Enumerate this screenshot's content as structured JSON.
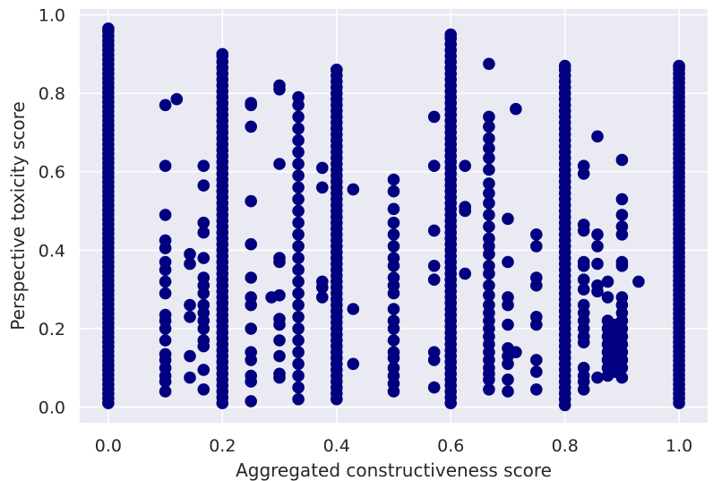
{
  "chart_data": {
    "type": "scatter",
    "title": "",
    "xlabel": "Aggregated constructiveness score",
    "ylabel": "Perspective toxicity score",
    "xlim": [
      -0.05,
      1.05
    ],
    "ylim": [
      -0.04,
      1.015
    ],
    "xticks": [
      "0.0",
      "0.2",
      "0.4",
      "0.6",
      "0.8",
      "1.0"
    ],
    "yticks": [
      "0.0",
      "0.2",
      "0.4",
      "0.6",
      "0.8",
      "1.0"
    ],
    "grid": true,
    "background": "#EAEAF2",
    "marker_color": "#000080",
    "series": [
      {
        "dense_columns": [
          {
            "x": 0.0,
            "y_range": [
              0.01,
              0.965
            ],
            "step": 0.012
          },
          {
            "x": 0.2,
            "y_range": [
              0.01,
              0.9
            ],
            "step": 0.015
          },
          {
            "x": 0.333,
            "y_range": [
              0.02,
              0.79
            ],
            "step": 0.03
          },
          {
            "x": 0.4,
            "y_range": [
              0.02,
              0.86
            ],
            "step": 0.015
          },
          {
            "x": 0.6,
            "y_range": [
              0.01,
              0.95
            ],
            "step": 0.015
          },
          {
            "x": 0.8,
            "y_range": [
              0.005,
              0.87
            ],
            "step": 0.015
          },
          {
            "x": 1.0,
            "y_range": [
              0.01,
              0.87
            ],
            "step": 0.012
          }
        ],
        "points": [
          [
            0.1,
            0.77
          ],
          [
            0.12,
            0.785
          ],
          [
            0.1,
            0.615
          ],
          [
            0.1,
            0.49
          ],
          [
            0.1,
            0.425
          ],
          [
            0.1,
            0.405
          ],
          [
            0.1,
            0.37
          ],
          [
            0.1,
            0.35
          ],
          [
            0.1,
            0.32
          ],
          [
            0.1,
            0.29
          ],
          [
            0.1,
            0.235
          ],
          [
            0.1,
            0.22
          ],
          [
            0.1,
            0.2
          ],
          [
            0.1,
            0.17
          ],
          [
            0.1,
            0.135
          ],
          [
            0.1,
            0.12
          ],
          [
            0.1,
            0.1
          ],
          [
            0.1,
            0.08
          ],
          [
            0.1,
            0.065
          ],
          [
            0.1,
            0.04
          ],
          [
            0.143,
            0.39
          ],
          [
            0.143,
            0.365
          ],
          [
            0.143,
            0.26
          ],
          [
            0.143,
            0.23
          ],
          [
            0.143,
            0.13
          ],
          [
            0.143,
            0.075
          ],
          [
            0.167,
            0.615
          ],
          [
            0.167,
            0.565
          ],
          [
            0.167,
            0.47
          ],
          [
            0.167,
            0.445
          ],
          [
            0.167,
            0.38
          ],
          [
            0.167,
            0.33
          ],
          [
            0.167,
            0.31
          ],
          [
            0.167,
            0.29
          ],
          [
            0.167,
            0.26
          ],
          [
            0.167,
            0.24
          ],
          [
            0.167,
            0.22
          ],
          [
            0.167,
            0.2
          ],
          [
            0.167,
            0.17
          ],
          [
            0.167,
            0.155
          ],
          [
            0.167,
            0.095
          ],
          [
            0.167,
            0.045
          ],
          [
            0.25,
            0.775
          ],
          [
            0.25,
            0.77
          ],
          [
            0.25,
            0.715
          ],
          [
            0.25,
            0.525
          ],
          [
            0.25,
            0.415
          ],
          [
            0.25,
            0.33
          ],
          [
            0.25,
            0.28
          ],
          [
            0.25,
            0.26
          ],
          [
            0.25,
            0.2
          ],
          [
            0.25,
            0.14
          ],
          [
            0.25,
            0.12
          ],
          [
            0.25,
            0.08
          ],
          [
            0.25,
            0.065
          ],
          [
            0.25,
            0.015
          ],
          [
            0.286,
            0.28
          ],
          [
            0.3,
            0.82
          ],
          [
            0.3,
            0.81
          ],
          [
            0.3,
            0.62
          ],
          [
            0.3,
            0.38
          ],
          [
            0.3,
            0.37
          ],
          [
            0.3,
            0.285
          ],
          [
            0.3,
            0.225
          ],
          [
            0.3,
            0.21
          ],
          [
            0.3,
            0.17
          ],
          [
            0.3,
            0.13
          ],
          [
            0.3,
            0.085
          ],
          [
            0.3,
            0.075
          ],
          [
            0.375,
            0.61
          ],
          [
            0.375,
            0.56
          ],
          [
            0.375,
            0.32
          ],
          [
            0.375,
            0.305
          ],
          [
            0.375,
            0.28
          ],
          [
            0.429,
            0.555
          ],
          [
            0.429,
            0.25
          ],
          [
            0.429,
            0.11
          ],
          [
            0.5,
            0.58
          ],
          [
            0.5,
            0.55
          ],
          [
            0.5,
            0.505
          ],
          [
            0.5,
            0.47
          ],
          [
            0.5,
            0.44
          ],
          [
            0.5,
            0.41
          ],
          [
            0.5,
            0.38
          ],
          [
            0.5,
            0.36
          ],
          [
            0.5,
            0.33
          ],
          [
            0.5,
            0.31
          ],
          [
            0.5,
            0.29
          ],
          [
            0.5,
            0.25
          ],
          [
            0.5,
            0.22
          ],
          [
            0.5,
            0.2
          ],
          [
            0.5,
            0.17
          ],
          [
            0.5,
            0.14
          ],
          [
            0.5,
            0.125
          ],
          [
            0.5,
            0.1
          ],
          [
            0.5,
            0.08
          ],
          [
            0.5,
            0.06
          ],
          [
            0.5,
            0.04
          ],
          [
            0.571,
            0.74
          ],
          [
            0.571,
            0.615
          ],
          [
            0.571,
            0.45
          ],
          [
            0.571,
            0.36
          ],
          [
            0.571,
            0.325
          ],
          [
            0.571,
            0.14
          ],
          [
            0.571,
            0.12
          ],
          [
            0.571,
            0.05
          ],
          [
            0.625,
            0.615
          ],
          [
            0.625,
            0.51
          ],
          [
            0.625,
            0.5
          ],
          [
            0.625,
            0.34
          ],
          [
            0.667,
            0.875
          ],
          [
            0.667,
            0.74
          ],
          [
            0.667,
            0.715
          ],
          [
            0.667,
            0.685
          ],
          [
            0.667,
            0.66
          ],
          [
            0.667,
            0.635
          ],
          [
            0.667,
            0.605
          ],
          [
            0.667,
            0.57
          ],
          [
            0.667,
            0.545
          ],
          [
            0.667,
            0.52
          ],
          [
            0.667,
            0.49
          ],
          [
            0.667,
            0.46
          ],
          [
            0.667,
            0.43
          ],
          [
            0.667,
            0.41
          ],
          [
            0.667,
            0.39
          ],
          [
            0.667,
            0.36
          ],
          [
            0.667,
            0.34
          ],
          [
            0.667,
            0.31
          ],
          [
            0.667,
            0.285
          ],
          [
            0.667,
            0.26
          ],
          [
            0.667,
            0.24
          ],
          [
            0.667,
            0.22
          ],
          [
            0.667,
            0.2
          ],
          [
            0.667,
            0.18
          ],
          [
            0.667,
            0.16
          ],
          [
            0.667,
            0.14
          ],
          [
            0.667,
            0.12
          ],
          [
            0.667,
            0.1
          ],
          [
            0.667,
            0.085
          ],
          [
            0.667,
            0.07
          ],
          [
            0.667,
            0.045
          ],
          [
            0.7,
            0.48
          ],
          [
            0.7,
            0.37
          ],
          [
            0.7,
            0.28
          ],
          [
            0.7,
            0.26
          ],
          [
            0.7,
            0.21
          ],
          [
            0.7,
            0.15
          ],
          [
            0.7,
            0.13
          ],
          [
            0.7,
            0.11
          ],
          [
            0.7,
            0.07
          ],
          [
            0.7,
            0.04
          ],
          [
            0.714,
            0.76
          ],
          [
            0.714,
            0.14
          ],
          [
            0.75,
            0.44
          ],
          [
            0.75,
            0.41
          ],
          [
            0.75,
            0.33
          ],
          [
            0.75,
            0.31
          ],
          [
            0.75,
            0.23
          ],
          [
            0.75,
            0.21
          ],
          [
            0.75,
            0.12
          ],
          [
            0.75,
            0.09
          ],
          [
            0.75,
            0.045
          ],
          [
            0.833,
            0.615
          ],
          [
            0.833,
            0.595
          ],
          [
            0.833,
            0.465
          ],
          [
            0.833,
            0.45
          ],
          [
            0.833,
            0.37
          ],
          [
            0.833,
            0.36
          ],
          [
            0.833,
            0.325
          ],
          [
            0.833,
            0.3
          ],
          [
            0.833,
            0.26
          ],
          [
            0.833,
            0.24
          ],
          [
            0.833,
            0.22
          ],
          [
            0.833,
            0.2
          ],
          [
            0.833,
            0.18
          ],
          [
            0.833,
            0.165
          ],
          [
            0.833,
            0.1
          ],
          [
            0.833,
            0.08
          ],
          [
            0.833,
            0.065
          ],
          [
            0.833,
            0.045
          ],
          [
            0.857,
            0.69
          ],
          [
            0.857,
            0.44
          ],
          [
            0.857,
            0.41
          ],
          [
            0.857,
            0.365
          ],
          [
            0.857,
            0.31
          ],
          [
            0.857,
            0.295
          ],
          [
            0.857,
            0.075
          ],
          [
            0.875,
            0.32
          ],
          [
            0.875,
            0.28
          ],
          [
            0.875,
            0.22
          ],
          [
            0.875,
            0.2
          ],
          [
            0.875,
            0.18
          ],
          [
            0.875,
            0.16
          ],
          [
            0.875,
            0.14
          ],
          [
            0.875,
            0.12
          ],
          [
            0.875,
            0.1
          ],
          [
            0.875,
            0.08
          ],
          [
            0.888,
            0.21
          ],
          [
            0.888,
            0.19
          ],
          [
            0.888,
            0.17
          ],
          [
            0.888,
            0.15
          ],
          [
            0.888,
            0.13
          ],
          [
            0.888,
            0.11
          ],
          [
            0.888,
            0.09
          ],
          [
            0.9,
            0.63
          ],
          [
            0.9,
            0.53
          ],
          [
            0.9,
            0.49
          ],
          [
            0.9,
            0.46
          ],
          [
            0.9,
            0.44
          ],
          [
            0.9,
            0.37
          ],
          [
            0.9,
            0.36
          ],
          [
            0.9,
            0.28
          ],
          [
            0.9,
            0.26
          ],
          [
            0.9,
            0.24
          ],
          [
            0.9,
            0.22
          ],
          [
            0.9,
            0.2
          ],
          [
            0.9,
            0.18
          ],
          [
            0.9,
            0.16
          ],
          [
            0.9,
            0.14
          ],
          [
            0.9,
            0.12
          ],
          [
            0.9,
            0.1
          ],
          [
            0.9,
            0.075
          ],
          [
            0.929,
            0.32
          ]
        ]
      }
    ]
  }
}
